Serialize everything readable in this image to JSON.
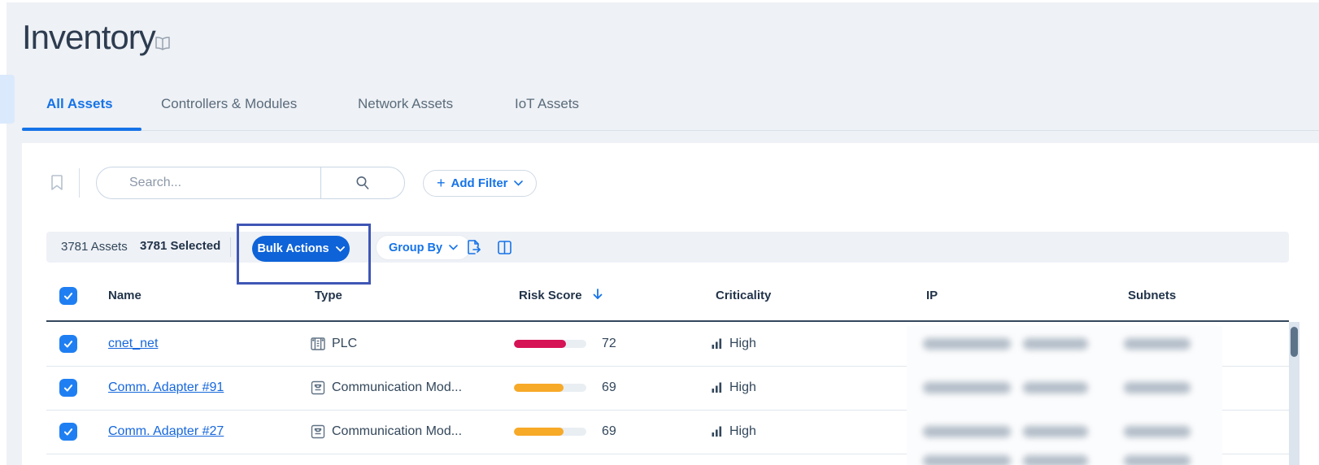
{
  "page": {
    "title": "Inventory"
  },
  "tabs": [
    {
      "label": "All Assets",
      "active": true
    },
    {
      "label": "Controllers & Modules",
      "active": false
    },
    {
      "label": "Network Assets",
      "active": false
    },
    {
      "label": "IoT Assets",
      "active": false
    }
  ],
  "search": {
    "placeholder": "Search..."
  },
  "filter_bar": {
    "add_filter_label": "Add Filter",
    "plus_glyph": "+"
  },
  "toolbar": {
    "assets_count": "3781 Assets",
    "selected_count": "3781 Selected",
    "bulk_actions_label": "Bulk Actions",
    "group_by_label": "Group By"
  },
  "annotation": {
    "type": "highlight-box",
    "target": "Bulk Actions",
    "color": "#3f56b5"
  },
  "table": {
    "headers": [
      "Name",
      "Type",
      "Risk Score",
      "Criticality",
      "IP",
      "Subnets"
    ],
    "sorted_by": "Risk Score",
    "sort_direction": "desc",
    "all_selected": true,
    "rows": [
      {
        "selected": true,
        "name": "cnet_net",
        "type": "PLC",
        "type_icon": "plc-icon",
        "risk_score": 72,
        "risk_color": "#d61354",
        "criticality": "High",
        "ip": "[redacted]",
        "subnets": "[redacted]"
      },
      {
        "selected": true,
        "name": "Comm. Adapter #91",
        "type": "Communication Mod...",
        "type_icon": "communication-module-icon",
        "risk_score": 69,
        "risk_color": "#f7a928",
        "criticality": "High",
        "ip": "[redacted]",
        "subnets": "[redacted]"
      },
      {
        "selected": true,
        "name": "Comm. Adapter #27",
        "type": "Communication Mod...",
        "type_icon": "communication-module-icon",
        "risk_score": 69,
        "risk_color": "#f7a928",
        "criticality": "High",
        "ip": "[redacted]",
        "subnets": "[redacted]"
      }
    ]
  },
  "icons": {
    "title": "book-icon",
    "saved_views": "bookmark-icon",
    "search": "magnifier-icon",
    "export": "export-icon",
    "columns": "columns-icon",
    "criticality": "bar-chart-icon",
    "sort": "arrow-down-icon",
    "dropdowns": "chevron-down-icon"
  },
  "colors": {
    "accent_blue": "#1573e8",
    "bulk_button_blue": "#0e63d8",
    "risk_high_crimson": "#d61354",
    "risk_medium_orange": "#f7a928",
    "header_navy": "#22344a",
    "highlight_box": "#3f56b5"
  }
}
